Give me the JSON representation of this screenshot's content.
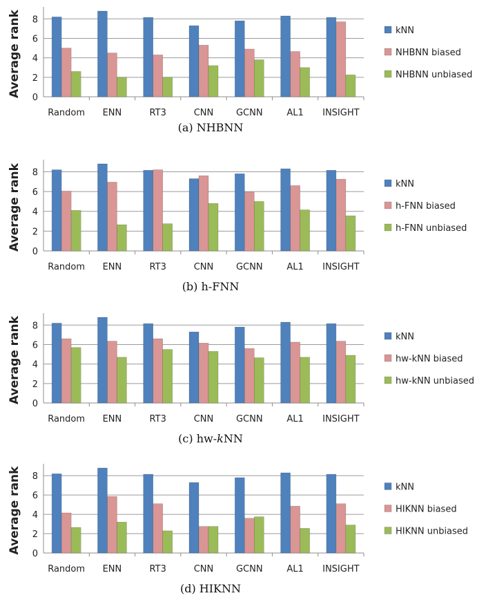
{
  "chart_data": [
    {
      "type": "bar",
      "caption": "(a) NHBNN",
      "ylabel": "Average rank",
      "ylim": [
        0,
        8
      ],
      "yticks": [
        0,
        2,
        4,
        6,
        8
      ],
      "grid": true,
      "legend_position": "right",
      "categories": [
        "Random",
        "ENN",
        "RT3",
        "CNN",
        "GCNN",
        "AL1",
        "INSIGHT"
      ],
      "series": [
        {
          "name": "kNN",
          "color": "#4F81BD",
          "values": [
            8.2,
            8.8,
            8.15,
            7.3,
            7.8,
            8.3,
            8.15
          ]
        },
        {
          "name": "NHBNN biased",
          "color": "#D99694",
          "values": [
            5.0,
            4.5,
            4.3,
            5.3,
            4.9,
            4.65,
            7.7
          ]
        },
        {
          "name": "NHBNN unbiased",
          "color": "#9BBB59",
          "values": [
            2.6,
            2.0,
            2.0,
            3.2,
            3.8,
            3.0,
            2.25
          ]
        }
      ]
    },
    {
      "type": "bar",
      "caption": "(b) h-FNN",
      "ylabel": "Average rank",
      "ylim": [
        0,
        8
      ],
      "yticks": [
        0,
        2,
        4,
        6,
        8
      ],
      "grid": true,
      "legend_position": "right",
      "categories": [
        "Random",
        "ENN",
        "RT3",
        "CNN",
        "GCNN",
        "AL1",
        "INSIGHT"
      ],
      "series": [
        {
          "name": "kNN",
          "color": "#4F81BD",
          "values": [
            8.2,
            8.8,
            8.15,
            7.3,
            7.8,
            8.3,
            8.15
          ]
        },
        {
          "name": "h-FNN biased",
          "color": "#D99694",
          "values": [
            6.05,
            6.95,
            8.2,
            7.6,
            5.95,
            6.6,
            7.25
          ]
        },
        {
          "name": "h-FNN unbiased",
          "color": "#9BBB59",
          "values": [
            4.1,
            2.65,
            2.75,
            4.8,
            5.0,
            4.15,
            3.55
          ]
        }
      ]
    },
    {
      "type": "bar",
      "caption": "(c) hw-kNN",
      "ylabel": "Average rank",
      "ylim": [
        0,
        8
      ],
      "yticks": [
        0,
        2,
        4,
        6,
        8
      ],
      "grid": true,
      "legend_position": "right",
      "categories": [
        "Random",
        "ENN",
        "RT3",
        "CNN",
        "GCNN",
        "AL1",
        "INSIGHT"
      ],
      "series": [
        {
          "name": "kNN",
          "color": "#4F81BD",
          "values": [
            8.2,
            8.8,
            8.15,
            7.3,
            7.8,
            8.3,
            8.15
          ]
        },
        {
          "name": "hw-kNN biased",
          "color": "#D99694",
          "values": [
            6.6,
            6.35,
            6.6,
            6.15,
            5.6,
            6.25,
            6.35
          ]
        },
        {
          "name": "hw-kNN unbiased",
          "color": "#9BBB59",
          "values": [
            5.7,
            4.7,
            5.5,
            5.3,
            4.65,
            4.7,
            4.9
          ]
        }
      ]
    },
    {
      "type": "bar",
      "caption": "(d) HIKNN",
      "ylabel": "Average rank",
      "ylim": [
        0,
        8
      ],
      "yticks": [
        0,
        2,
        4,
        6,
        8
      ],
      "grid": true,
      "legend_position": "right",
      "categories": [
        "Random",
        "ENN",
        "RT3",
        "CNN",
        "GCNN",
        "AL1",
        "INSIGHT"
      ],
      "series": [
        {
          "name": "kNN",
          "color": "#4F81BD",
          "values": [
            8.2,
            8.8,
            8.15,
            7.3,
            7.8,
            8.3,
            8.15
          ]
        },
        {
          "name": "HIKNN biased",
          "color": "#D99694",
          "values": [
            4.15,
            5.85,
            5.1,
            2.75,
            3.6,
            4.85,
            5.1
          ]
        },
        {
          "name": "HIKNN unbiased",
          "color": "#9BBB59",
          "values": [
            2.65,
            3.2,
            2.3,
            2.75,
            3.75,
            2.55,
            2.9
          ]
        }
      ]
    }
  ]
}
